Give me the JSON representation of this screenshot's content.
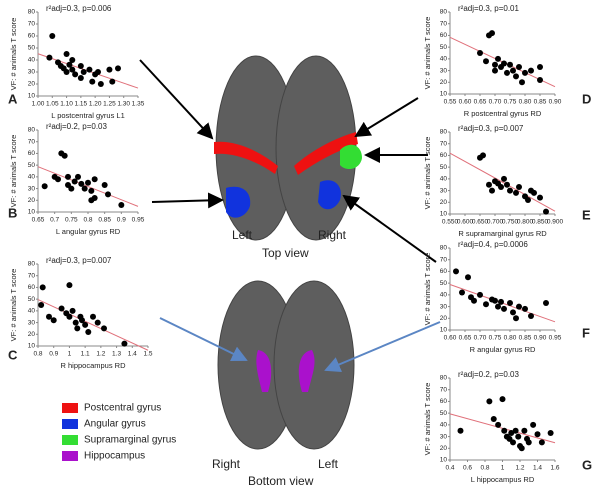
{
  "chart_data": [
    {
      "type": "scatter",
      "label": "A",
      "annotation": "r²adj=0.3, p=0.006",
      "xlabel": "L postcentral gyrus L1",
      "ylabel": "VF: # animals T score",
      "color": "#000000",
      "fit_color": "#e0707a",
      "x": [
        1.05,
        1.04,
        1.07,
        1.08,
        1.09,
        1.1,
        1.1,
        1.11,
        1.12,
        1.12,
        1.13,
        1.15,
        1.15,
        1.16,
        1.18,
        1.19,
        1.2,
        1.21,
        1.22,
        1.25,
        1.26,
        1.28
      ],
      "values": [
        60,
        42,
        38,
        35,
        33,
        45,
        30,
        36,
        32,
        40,
        28,
        35,
        25,
        30,
        32,
        22,
        28,
        30,
        20,
        32,
        22,
        33
      ],
      "xlim": [
        1.0,
        1.35
      ],
      "xticks": [
        {
          "value": 1,
          "label": "1.00"
        },
        1.05,
        {
          "value": 1.1,
          "label": "1.10"
        },
        1.15,
        {
          "value": 1.2,
          "label": "1.20"
        },
        1.25,
        {
          "value": 1.3,
          "label": "1.30"
        },
        1.35
      ],
      "ylim": [
        10,
        80
      ],
      "yticks": [
        10,
        20,
        30,
        40,
        50,
        60,
        70,
        80
      ]
    },
    {
      "type": "scatter",
      "label": "B",
      "annotation": "r²adj=0.2, p=0.03",
      "xlabel": "L angular gyrus RD",
      "ylabel": "VF: # animals T score",
      "color": "#000000",
      "fit_color": "#e0707a",
      "x": [
        0.67,
        0.7,
        0.71,
        0.72,
        0.73,
        0.74,
        0.74,
        0.75,
        0.76,
        0.77,
        0.78,
        0.79,
        0.8,
        0.81,
        0.81,
        0.82,
        0.82,
        0.85,
        0.86,
        0.9
      ],
      "values": [
        32,
        40,
        38,
        60,
        58,
        40,
        33,
        30,
        36,
        40,
        34,
        30,
        35,
        28,
        20,
        38,
        22,
        33,
        25,
        16
      ],
      "xlim": [
        0.65,
        0.95
      ],
      "xticks": [
        0.65,
        0.7,
        0.75,
        0.8,
        0.85,
        0.9,
        0.95
      ],
      "ylim": [
        10,
        80
      ],
      "yticks": [
        10,
        20,
        30,
        40,
        50,
        60,
        70,
        80
      ]
    },
    {
      "type": "scatter",
      "label": "C",
      "annotation": "r²adj=0.3, p=0.007",
      "xlabel": "R hippocampus RD",
      "ylabel": "VF: # animals T score",
      "color": "#000000",
      "fit_color": "#e0707a",
      "x": [
        0.82,
        0.83,
        0.87,
        0.9,
        0.95,
        0.98,
        1.0,
        1.0,
        1.02,
        1.04,
        1.05,
        1.07,
        1.08,
        1.1,
        1.12,
        1.15,
        1.18,
        1.22,
        1.35
      ],
      "values": [
        45,
        60,
        35,
        32,
        42,
        38,
        35,
        62,
        40,
        30,
        25,
        35,
        32,
        28,
        22,
        35,
        30,
        25,
        12
      ],
      "xlim": [
        0.8,
        1.5
      ],
      "xticks": [
        0.8,
        0.9,
        1,
        1.1,
        1.2,
        1.3,
        1.4,
        1.5
      ],
      "ylim": [
        10,
        80
      ],
      "yticks": [
        10,
        20,
        30,
        40,
        50,
        60,
        70,
        80
      ]
    },
    {
      "type": "scatter",
      "label": "D",
      "annotation": "r²adj=0.3, p=0.01",
      "xlabel": "R postcentral gyrus RD",
      "ylabel": "VF: # animals T score",
      "color": "#000000",
      "fit_color": "#e0707a",
      "x": [
        0.65,
        0.67,
        0.68,
        0.69,
        0.7,
        0.7,
        0.71,
        0.72,
        0.73,
        0.74,
        0.75,
        0.76,
        0.77,
        0.78,
        0.79,
        0.8,
        0.82,
        0.85,
        0.85
      ],
      "values": [
        45,
        38,
        60,
        62,
        35,
        30,
        40,
        33,
        36,
        28,
        35,
        30,
        25,
        33,
        20,
        28,
        30,
        33,
        22
      ],
      "xlim": [
        0.55,
        0.9
      ],
      "xticks": [
        0.55,
        {
          "value": 0.6,
          "label": "0.60"
        },
        0.65,
        {
          "value": 0.7,
          "label": "0.70"
        },
        0.75,
        {
          "value": 0.8,
          "label": "0.80"
        },
        0.85,
        {
          "value": 0.9,
          "label": "0.90"
        }
      ],
      "ylim": [
        10,
        80
      ],
      "yticks": [
        10,
        20,
        30,
        40,
        50,
        60,
        70,
        80
      ]
    },
    {
      "type": "scatter",
      "label": "E",
      "annotation": "r²adj=0.3, p=0.007",
      "xlabel": "R supramarginal gyrus RD",
      "ylabel": "VF: # animals T score",
      "color": "#000000",
      "fit_color": "#e0707a",
      "x": [
        0.65,
        0.66,
        0.68,
        0.69,
        0.7,
        0.71,
        0.72,
        0.73,
        0.74,
        0.75,
        0.77,
        0.78,
        0.8,
        0.81,
        0.82,
        0.83,
        0.85,
        0.87
      ],
      "values": [
        58,
        60,
        35,
        30,
        38,
        36,
        33,
        40,
        35,
        30,
        28,
        33,
        25,
        22,
        30,
        28,
        24,
        12
      ],
      "xlim": [
        0.55,
        0.9
      ],
      "xticks": [
        {
          "value": 0.55,
          "label": "0.550"
        },
        {
          "value": 0.6,
          "label": "0.600"
        },
        {
          "value": 0.65,
          "label": "0.650"
        },
        {
          "value": 0.7,
          "label": "0.700"
        },
        {
          "value": 0.75,
          "label": "0.750"
        },
        {
          "value": 0.8,
          "label": "0.800"
        },
        {
          "value": 0.85,
          "label": "0.850"
        },
        {
          "value": 0.9,
          "label": "0.900"
        }
      ],
      "ylim": [
        10,
        80
      ],
      "yticks": [
        10,
        20,
        30,
        40,
        50,
        60,
        70,
        80
      ]
    },
    {
      "type": "scatter",
      "label": "F",
      "annotation": "r²adj=0.4, p=0.0006",
      "xlabel": "R angular gyrus RD",
      "ylabel": "VF: # animals T score",
      "color": "#000000",
      "fit_color": "#e0707a",
      "x": [
        0.62,
        0.64,
        0.66,
        0.67,
        0.68,
        0.7,
        0.72,
        0.74,
        0.75,
        0.76,
        0.77,
        0.78,
        0.8,
        0.81,
        0.82,
        0.83,
        0.85,
        0.87,
        0.92
      ],
      "values": [
        60,
        42,
        55,
        38,
        35,
        40,
        32,
        36,
        35,
        30,
        34,
        28,
        33,
        25,
        20,
        30,
        28,
        22,
        33
      ],
      "xlim": [
        0.6,
        0.95
      ],
      "xticks": [
        {
          "value": 0.6,
          "label": "0.60"
        },
        0.65,
        {
          "value": 0.7,
          "label": "0.70"
        },
        0.75,
        {
          "value": 0.8,
          "label": "0.80"
        },
        0.85,
        {
          "value": 0.9,
          "label": "0.90"
        },
        0.95
      ],
      "ylim": [
        10,
        80
      ],
      "yticks": [
        10,
        20,
        30,
        40,
        50,
        60,
        70,
        80
      ]
    },
    {
      "type": "scatter",
      "label": "G",
      "annotation": "r²adj=0.2, p=0.03",
      "xlabel": "L hippocampus RD",
      "ylabel": "VF: # animals T score",
      "color": "#000000",
      "fit_color": "#e0707a",
      "x": [
        0.52,
        0.85,
        0.9,
        0.95,
        1.0,
        1.02,
        1.05,
        1.08,
        1.1,
        1.12,
        1.15,
        1.18,
        1.2,
        1.22,
        1.25,
        1.28,
        1.3,
        1.35,
        1.4,
        1.45,
        1.55
      ],
      "values": [
        35,
        60,
        45,
        40,
        62,
        35,
        30,
        28,
        33,
        25,
        35,
        30,
        22,
        20,
        35,
        28,
        25,
        40,
        32,
        25,
        33
      ],
      "xlim": [
        0.4,
        1.6
      ],
      "xticks": [
        0.4,
        0.6,
        0.8,
        1,
        1.2,
        1.4,
        1.6
      ],
      "ylim": [
        10,
        80
      ],
      "yticks": [
        10,
        20,
        30,
        40,
        50,
        60,
        70,
        80
      ]
    }
  ],
  "brain": {
    "top_view": "Top view",
    "bottom_view": "Bottom view",
    "top_left": "Left",
    "top_right": "Right",
    "bottom_left": "Left",
    "bottom_right": "Right"
  },
  "legend": [
    {
      "name": "Postcentral gyrus",
      "color": "#ee1111"
    },
    {
      "name": "Angular gyrus",
      "color": "#1133dd"
    },
    {
      "name": "Supramarginal gyrus",
      "color": "#33dd33"
    },
    {
      "name": "Hippocampus",
      "color": "#aa11cc"
    }
  ]
}
